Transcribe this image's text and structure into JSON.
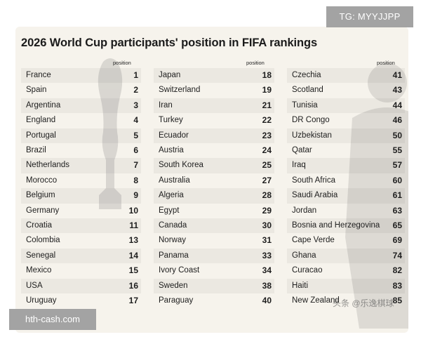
{
  "title": "2026 World Cup participants' position in FIFA rankings",
  "column_header": "position",
  "columns": [
    [
      {
        "country": "France",
        "position": "1"
      },
      {
        "country": "Spain",
        "position": "2"
      },
      {
        "country": "Argentina",
        "position": "3"
      },
      {
        "country": "England",
        "position": "4"
      },
      {
        "country": "Portugal",
        "position": "5"
      },
      {
        "country": "Brazil",
        "position": "6"
      },
      {
        "country": "Netherlands",
        "position": "7"
      },
      {
        "country": "Morocco",
        "position": "8"
      },
      {
        "country": "Belgium",
        "position": "9"
      },
      {
        "country": "Germany",
        "position": "10"
      },
      {
        "country": "Croatia",
        "position": "11"
      },
      {
        "country": "Colombia",
        "position": "13"
      },
      {
        "country": "Senegal",
        "position": "14"
      },
      {
        "country": "Mexico",
        "position": "15"
      },
      {
        "country": "USA",
        "position": "16"
      },
      {
        "country": "Uruguay",
        "position": "17"
      }
    ],
    [
      {
        "country": "Japan",
        "position": "18"
      },
      {
        "country": "Switzerland",
        "position": "19"
      },
      {
        "country": "Iran",
        "position": "21"
      },
      {
        "country": "Turkey",
        "position": "22"
      },
      {
        "country": "Ecuador",
        "position": "23"
      },
      {
        "country": "Austria",
        "position": "24"
      },
      {
        "country": "South Korea",
        "position": "25"
      },
      {
        "country": "Australia",
        "position": "27"
      },
      {
        "country": "Algeria",
        "position": "28"
      },
      {
        "country": "Egypt",
        "position": "29"
      },
      {
        "country": "Canada",
        "position": "30"
      },
      {
        "country": "Norway",
        "position": "31"
      },
      {
        "country": "Panama",
        "position": "33"
      },
      {
        "country": "Ivory Coast",
        "position": "34"
      },
      {
        "country": "Sweden",
        "position": "38"
      },
      {
        "country": "Paraguay",
        "position": "40"
      }
    ],
    [
      {
        "country": "Czechia",
        "position": "41"
      },
      {
        "country": "Scotland",
        "position": "43"
      },
      {
        "country": "Tunisia",
        "position": "44"
      },
      {
        "country": "DR Congo",
        "position": "46"
      },
      {
        "country": "Uzbekistan",
        "position": "50"
      },
      {
        "country": "Qatar",
        "position": "55"
      },
      {
        "country": "Iraq",
        "position": "57"
      },
      {
        "country": "South Africa",
        "position": "60"
      },
      {
        "country": "Saudi Arabia",
        "position": "61"
      },
      {
        "country": "Jordan",
        "position": "63"
      },
      {
        "country": "Bosnia and Herzegovina",
        "position": "65"
      },
      {
        "country": "Cape Verde",
        "position": "69"
      },
      {
        "country": "Ghana",
        "position": "74"
      },
      {
        "country": "Curacao",
        "position": "82"
      },
      {
        "country": "Haiti",
        "position": "83"
      },
      {
        "country": "New Zealand",
        "position": "85"
      }
    ]
  ],
  "badges": {
    "telegram": "TG: MYYJJPP",
    "site": "hth-cash.com"
  },
  "corner_watermark": "头条 @乐逸棋球"
}
